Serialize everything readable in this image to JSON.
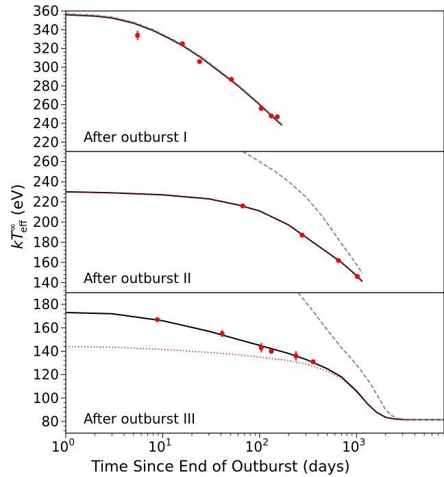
{
  "chart_data": {
    "type": "line",
    "xlabel": "Time Since End of Outburst (days)",
    "ylabel": "kT∞ eff (eV)",
    "ylabel_parts": {
      "main": "kT",
      "sup": "∞",
      "sub": "eff",
      "unit": " (eV)"
    },
    "xscale": "log",
    "xlim": [
      1,
      8000
    ],
    "x_ticks": [
      {
        "value": 1,
        "base": "10",
        "exp": "0"
      },
      {
        "value": 10,
        "base": "10",
        "exp": "1"
      },
      {
        "value": 100,
        "base": "10",
        "exp": "2"
      },
      {
        "value": 1000,
        "base": "10",
        "exp": "3"
      }
    ],
    "panels": [
      {
        "label": "After outburst I",
        "ylim": [
          210,
          360
        ],
        "yticks": [
          220,
          240,
          260,
          280,
          300,
          320,
          340,
          360
        ],
        "points": [
          {
            "x": 5.5,
            "y": 334,
            "err": 5
          },
          {
            "x": 16,
            "y": 325,
            "err": 2
          },
          {
            "x": 24,
            "y": 306,
            "err": 2
          },
          {
            "x": 51,
            "y": 287,
            "err": 2
          },
          {
            "x": 104,
            "y": 256,
            "err": 2
          },
          {
            "x": 132,
            "y": 248,
            "err": 2
          },
          {
            "x": 152,
            "y": 247,
            "err": 2
          }
        ],
        "series": [
          {
            "style": "solid-black",
            "x": [
              1,
              2,
              3,
              5,
              8,
              12,
              16,
              25,
              40,
              60,
              100,
              130,
              170
            ],
            "y": [
              356,
              354.5,
              352.5,
              347,
              339,
              330,
              323,
              310,
              294,
              280,
              260,
              249,
              238
            ]
          },
          {
            "style": "dotted-red",
            "x": [
              1,
              2,
              3,
              5,
              8,
              12,
              16,
              25,
              40,
              60,
              100,
              130,
              170
            ],
            "y": [
              356,
              354.5,
              352.5,
              347,
              339,
              330,
              323,
              310,
              294,
              280,
              260,
              249,
              238
            ]
          },
          {
            "style": "dashed-gray",
            "x": [
              1,
              2,
              3,
              5,
              8,
              12,
              16,
              25,
              40,
              60,
              100,
              130,
              170
            ],
            "y": [
              357,
              355.5,
              353.5,
              348,
              340,
              331,
              324,
              311,
              295,
              281,
              261,
              250,
              239
            ]
          }
        ]
      },
      {
        "label": "After outburst II",
        "ylim": [
          130,
          270
        ],
        "yticks": [
          140,
          160,
          180,
          200,
          220,
          240,
          260
        ],
        "points": [
          {
            "x": 67,
            "y": 216,
            "err": 1.5
          },
          {
            "x": 275,
            "y": 187,
            "err": 1.5
          },
          {
            "x": 650,
            "y": 162,
            "err": 1.5
          },
          {
            "x": 1020,
            "y": 146,
            "err": 1.5
          }
        ],
        "series": [
          {
            "style": "solid-black",
            "x": [
              1,
              3,
              10,
              30,
              60,
              100,
              200,
              300,
              500,
              700,
              1000,
              1150
            ],
            "y": [
              230,
              229,
              227,
              223,
              217,
              211,
              197,
              185,
              170,
              160,
              147,
              141
            ]
          },
          {
            "style": "dotted-red",
            "x": [
              1,
              3,
              10,
              30,
              60,
              100,
              200,
              300,
              500,
              700,
              1000,
              1150
            ],
            "y": [
              230,
              229,
              227,
              223,
              217,
              211,
              197,
              185,
              170,
              160,
              147,
              141
            ]
          },
          {
            "style": "dashed-gray",
            "x": [
              67,
              100,
              150,
              200,
              300,
              450,
              650,
              1000,
              1150
            ],
            "y": [
              270,
              260,
              249,
              240,
              225,
              205,
              183,
              158,
              149
            ]
          }
        ]
      },
      {
        "label": "After outburst III",
        "ylim": [
          70,
          190
        ],
        "yticks": [
          80,
          100,
          120,
          140,
          160,
          180
        ],
        "points": [
          {
            "x": 8.8,
            "y": 167,
            "err": 1.5
          },
          {
            "x": 41,
            "y": 155,
            "err": 3
          },
          {
            "x": 104,
            "y": 143,
            "err": 4
          },
          {
            "x": 132,
            "y": 140,
            "err": 2
          },
          {
            "x": 237,
            "y": 136,
            "err": 4
          },
          {
            "x": 356,
            "y": 131,
            "err": 2
          }
        ],
        "series": [
          {
            "style": "solid-black",
            "x": [
              1,
              3,
              10,
              30,
              60,
              100,
              200,
              300,
              500,
              700,
              1000,
              1300,
              1600,
              2000,
              2500,
              3200,
              4500,
              8000
            ],
            "y": [
              173,
              172,
              166,
              157,
              150,
              145,
              138,
              133,
              125,
              118,
              106,
              95,
              88,
              83.5,
              82,
              81.5,
              81.5,
              81.5
            ]
          },
          {
            "style": "dotted-red",
            "x": [
              1,
              3,
              10,
              30,
              60,
              100,
              200,
              300,
              500,
              700,
              1000,
              1300,
              1600,
              2000,
              2500,
              3200,
              4500,
              8000
            ],
            "y": [
              144,
              143.5,
              141.5,
              139,
              137,
              135,
              132,
              129,
              123,
              117,
              105,
              95,
              88,
              83.5,
              82,
              81.5,
              81.5,
              81.5
            ]
          },
          {
            "style": "dashed-gray",
            "x": [
              250,
              350,
              500,
              700,
              900,
              1100,
              1400,
              1700,
              2000,
              2300,
              2700,
              3200,
              4500,
              8000
            ],
            "y": [
              190,
              175,
              158,
              143,
              133,
              124,
              112,
              100,
              90,
              85,
              82.5,
              81.8,
              81.5,
              81.5
            ]
          }
        ]
      }
    ]
  }
}
